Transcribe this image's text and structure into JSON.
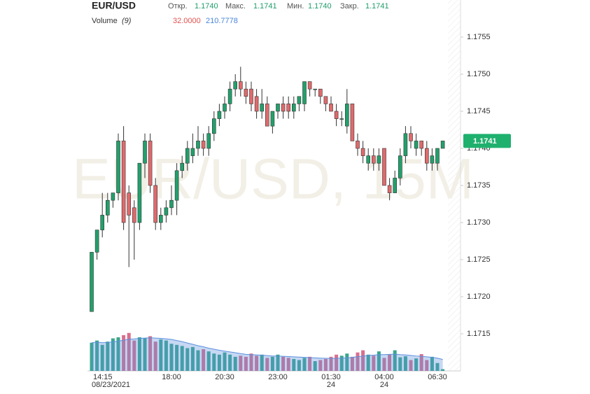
{
  "chart_data": {
    "type": "candlestick",
    "title": "EUR/USD",
    "watermark": "EUR/USD, 15M",
    "ohlc_header": [
      {
        "label": "Откр.",
        "value": "1.1740"
      },
      {
        "label": "Макс.",
        "value": "1.1741"
      },
      {
        "label": "Мин.",
        "value": "1.1740"
      },
      {
        "label": "Закр.",
        "value": "1.1741"
      }
    ],
    "volume_header": {
      "label": "Volume",
      "period": "(9)",
      "last": "32.0000",
      "ma_last": "210.7778"
    },
    "last_price": 1.1741,
    "categories": [
      "14:15",
      null,
      null,
      null,
      null,
      null,
      null,
      null,
      null,
      null,
      null,
      null,
      null,
      null,
      null,
      "18:00",
      null,
      null,
      null,
      null,
      null,
      null,
      null,
      null,
      null,
      "20:30",
      null,
      null,
      null,
      null,
      null,
      null,
      null,
      null,
      null,
      "23:00",
      null,
      null,
      null,
      null,
      null,
      null,
      null,
      null,
      null,
      "01:30",
      null,
      null,
      null,
      null,
      null,
      null,
      null,
      null,
      null,
      "04:00",
      null,
      null,
      null,
      null,
      null,
      null,
      null,
      null,
      null,
      "06:30",
      null
    ],
    "dates": [
      "08/23/2021",
      null,
      null,
      null,
      null,
      null,
      null,
      null,
      null,
      null,
      null,
      null,
      null,
      null,
      null,
      null,
      null,
      null,
      null,
      null,
      null,
      null,
      null,
      null,
      null,
      null,
      null,
      null,
      null,
      null,
      null,
      null,
      null,
      null,
      null,
      null,
      null,
      null,
      null,
      null,
      null,
      null,
      null,
      null,
      null,
      "24",
      null,
      null,
      null,
      null,
      null,
      null,
      null,
      null,
      null,
      "24",
      null,
      null,
      null,
      null,
      null,
      null,
      null,
      null,
      null,
      null,
      null
    ],
    "candles": {
      "up_color": "#22a06b",
      "down_color": "#e06a6c",
      "open": [
        1.1718,
        1.1726,
        1.1729,
        1.1731,
        1.1733,
        1.1734,
        1.1741,
        1.1734,
        1.1732,
        1.173,
        1.1738,
        1.1741,
        1.1735,
        1.173,
        1.1731,
        1.1732,
        1.1733,
        1.1737,
        1.1738,
        1.1739,
        1.174,
        1.1741,
        1.174,
        1.1742,
        1.1744,
        1.1745,
        1.1746,
        1.1748,
        1.1749,
        1.1748,
        1.1748,
        1.1747,
        1.1745,
        1.1746,
        1.1743,
        1.1745,
        1.1746,
        1.1746,
        1.1745,
        1.1746,
        1.1746,
        1.1749,
        1.1748,
        1.1748,
        1.1747,
        1.1746,
        1.1745,
        1.1744,
        1.1743,
        1.1746,
        1.1741,
        1.174,
        1.1738,
        1.1739,
        1.1738,
        1.174,
        1.1735,
        1.1734,
        1.1736,
        1.1739,
        1.1742,
        1.174,
        1.1741,
        1.174,
        1.1738,
        1.1738,
        1.174
      ],
      "high": [
        1.1726,
        1.1729,
        1.1734,
        1.1734,
        1.1734,
        1.1742,
        1.1743,
        1.1735,
        1.1733,
        1.1738,
        1.1742,
        1.1742,
        1.1736,
        1.1732,
        1.1733,
        1.1735,
        1.1738,
        1.1739,
        1.1741,
        1.1742,
        1.1743,
        1.1742,
        1.1743,
        1.1745,
        1.1746,
        1.1747,
        1.1749,
        1.175,
        1.1751,
        1.1749,
        1.1749,
        1.1748,
        1.1748,
        1.1747,
        1.1745,
        1.1746,
        1.1747,
        1.1747,
        1.1747,
        1.1747,
        1.1749,
        1.1749,
        1.1748,
        1.1748,
        1.1747,
        1.1747,
        1.1746,
        1.1745,
        1.1748,
        1.1746,
        1.1742,
        1.1741,
        1.174,
        1.174,
        1.174,
        1.174,
        1.1736,
        1.1737,
        1.174,
        1.1743,
        1.1743,
        1.1742,
        1.1741,
        1.1741,
        1.174,
        1.174,
        1.1741
      ],
      "low": [
        1.1718,
        1.1725,
        1.1728,
        1.173,
        1.1732,
        1.1733,
        1.1729,
        1.1724,
        1.1725,
        1.1729,
        1.1736,
        1.1734,
        1.1729,
        1.1729,
        1.173,
        1.1731,
        1.1731,
        1.1736,
        1.1737,
        1.1738,
        1.1739,
        1.1739,
        1.1739,
        1.1741,
        1.1743,
        1.1744,
        1.1745,
        1.1747,
        1.1747,
        1.1746,
        1.1745,
        1.1744,
        1.1744,
        1.1743,
        1.1742,
        1.1744,
        1.1744,
        1.1744,
        1.1744,
        1.1745,
        1.1745,
        1.1747,
        1.1747,
        1.1746,
        1.1745,
        1.1745,
        1.1743,
        1.1743,
        1.1742,
        1.1741,
        1.1739,
        1.1738,
        1.1737,
        1.1737,
        1.1737,
        1.1735,
        1.1733,
        1.1734,
        1.1735,
        1.1738,
        1.174,
        1.1739,
        1.1739,
        1.1737,
        1.1737,
        1.1737,
        1.174
      ],
      "close": [
        1.1726,
        1.1729,
        1.1731,
        1.1733,
        1.1734,
        1.1741,
        1.173,
        1.1731,
        1.173,
        1.1738,
        1.1741,
        1.1735,
        1.173,
        1.1731,
        1.1732,
        1.1733,
        1.1737,
        1.1738,
        1.174,
        1.174,
        1.1741,
        1.174,
        1.1742,
        1.1744,
        1.1745,
        1.1746,
        1.1748,
        1.1749,
        1.1748,
        1.1747,
        1.1746,
        1.1745,
        1.1746,
        1.1743,
        1.1745,
        1.1746,
        1.1745,
        1.1745,
        1.1746,
        1.1747,
        1.1749,
        1.1748,
        1.1748,
        1.1747,
        1.1746,
        1.1745,
        1.1744,
        1.1744,
        1.1746,
        1.1741,
        1.174,
        1.1739,
        1.1739,
        1.1738,
        1.1739,
        1.1735,
        1.1734,
        1.1736,
        1.1739,
        1.1742,
        1.1741,
        1.1741,
        1.174,
        1.1738,
        1.1739,
        1.174,
        1.1741
      ]
    },
    "ylim": [
      1.171,
      1.176
    ],
    "yticks": [
      1.1715,
      {
        "value": 1.172,
        "label": "1.1720"
      },
      1.1725,
      {
        "value": 1.173,
        "label": "1.1730"
      },
      1.1735,
      {
        "value": 1.174,
        "label": "1.1740"
      },
      1.1745,
      {
        "value": 1.175,
        "label": "1.1750"
      },
      1.1755
    ],
    "volume": {
      "up_color": "#3aa68f",
      "down_color": "#d9708e",
      "values": [
        520,
        560,
        480,
        540,
        600,
        620,
        660,
        700,
        560,
        620,
        600,
        640,
        540,
        580,
        560,
        500,
        480,
        460,
        420,
        440,
        380,
        400,
        360,
        320,
        300,
        340,
        300,
        260,
        280,
        260,
        320,
        280,
        300,
        240,
        260,
        300,
        260,
        240,
        220,
        200,
        240,
        260,
        180,
        200,
        220,
        260,
        300,
        280,
        320,
        260,
        340,
        380,
        300,
        280,
        360,
        240,
        300,
        380,
        250,
        270,
        200,
        230,
        310,
        200,
        260,
        145,
        32
      ]
    },
    "volume_ma": {
      "color": "#5b8fdc",
      "values": [
        520,
        530,
        520,
        525,
        535,
        550,
        565,
        585,
        590,
        600,
        605,
        612,
        605,
        600,
        592,
        580,
        560,
        540,
        515,
        490,
        465,
        445,
        420,
        400,
        380,
        365,
        350,
        335,
        320,
        305,
        300,
        295,
        290,
        282,
        275,
        275,
        270,
        265,
        260,
        255,
        250,
        245,
        240,
        235,
        232,
        230,
        232,
        235,
        240,
        250,
        262,
        275,
        285,
        290,
        300,
        300,
        305,
        310,
        300,
        295,
        285,
        275,
        270,
        260,
        250,
        235,
        210.7778
      ]
    },
    "vlim": [
      0,
      800
    ]
  }
}
